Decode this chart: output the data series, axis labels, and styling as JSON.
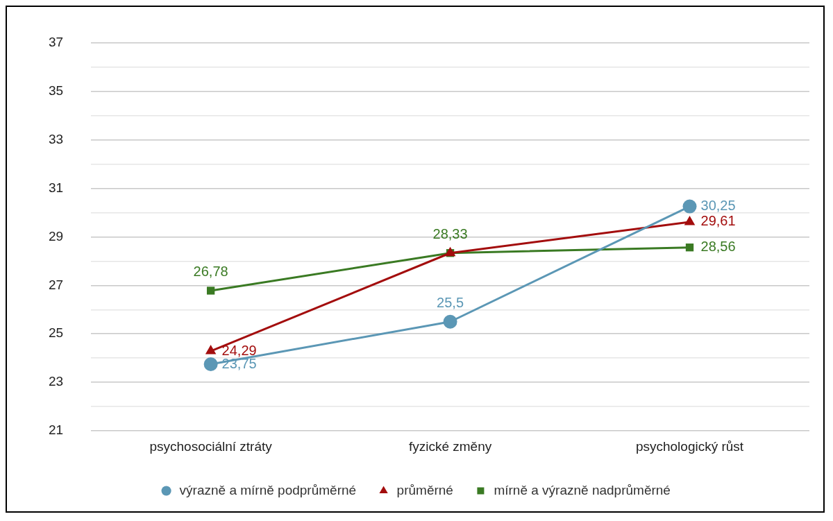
{
  "chart_data": {
    "type": "line",
    "categories": [
      "psychosociální ztráty",
      "fyzické změny",
      "psychologický růst"
    ],
    "series": [
      {
        "name": "výrazně a mírně podprůměrné",
        "color": "#5b97b5",
        "marker": "circle",
        "values": [
          23.75,
          25.5,
          30.25
        ],
        "value_labels": [
          "23,75",
          "25,5",
          "30,25"
        ]
      },
      {
        "name": "průměrné",
        "color": "#a30d0d",
        "marker": "triangle",
        "values": [
          24.29,
          28.33,
          29.61
        ],
        "value_labels": [
          "24,29",
          null,
          "29,61"
        ]
      },
      {
        "name": "mírně a výrazně nadprůměrné",
        "color": "#3a7a23",
        "marker": "square",
        "values": [
          26.78,
          28.33,
          28.56
        ],
        "value_labels": [
          "26,78",
          "28,33",
          "28,56"
        ]
      }
    ],
    "ylim": [
      21,
      37
    ],
    "yticks": [
      21,
      {
        "value": 22,
        "label": null
      },
      23,
      {
        "value": 24,
        "label": null
      },
      25,
      {
        "value": 26,
        "label": null
      },
      27,
      {
        "value": 28,
        "label": null
      },
      29,
      {
        "value": 30,
        "label": null
      },
      31,
      {
        "value": 32,
        "label": null
      },
      33,
      {
        "value": 34,
        "label": null
      },
      35,
      {
        "value": 36,
        "label": null
      },
      37
    ],
    "grid": "y",
    "legend": "bottom"
  }
}
